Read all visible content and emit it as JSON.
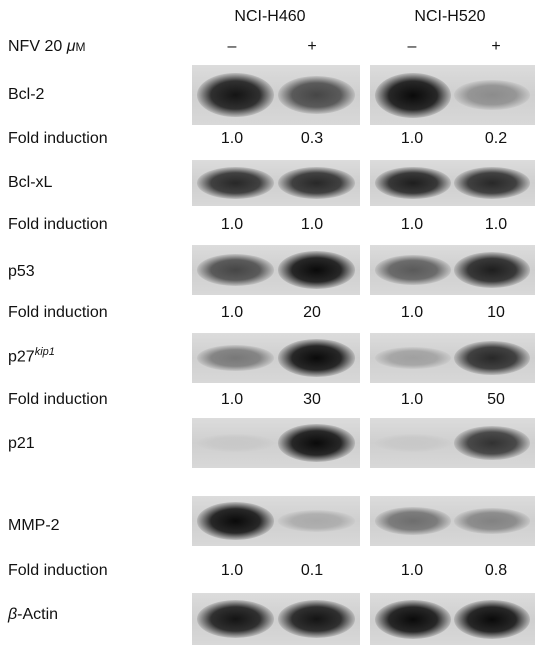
{
  "cell_lines": [
    "NCI-H460",
    "NCI-H520"
  ],
  "treatment": {
    "drug": "NFV  20",
    "unit_mu": "μ",
    "unit_m": "M"
  },
  "lane_signs": [
    "–",
    "+",
    "–",
    "+"
  ],
  "rows": {
    "bcl2": {
      "label": "Bcl-2",
      "fold_label": "Fold induction",
      "fold": [
        "1.0",
        "0.3",
        "1.0",
        "0.2"
      ]
    },
    "bclxl": {
      "label": "Bcl-xL",
      "fold_label": "Fold induction",
      "fold": [
        "1.0",
        "1.0",
        "1.0",
        "1.0"
      ]
    },
    "p53": {
      "label": "p53",
      "fold_label": "Fold induction",
      "fold": [
        "1.0",
        "20",
        "1.0",
        "10"
      ]
    },
    "p27": {
      "label": "p27",
      "label_sup": "kip1",
      "fold_label": "Fold induction",
      "fold": [
        "1.0",
        "30",
        "1.0",
        "50"
      ]
    },
    "p21": {
      "label": "p21"
    },
    "mmp2": {
      "label": "MMP-2",
      "fold_label": "Fold induction",
      "fold": [
        "1.0",
        "0.1",
        "1.0",
        "0.8"
      ]
    },
    "actin": {
      "label_greek": "β",
      "label": "-Actin"
    }
  },
  "band_intensity": {
    "bcl2": [
      0.95,
      0.7,
      1.0,
      0.35
    ],
    "bclxl": [
      0.85,
      0.85,
      0.9,
      0.85
    ],
    "p53": [
      0.7,
      1.0,
      0.6,
      0.9
    ],
    "p27": [
      0.45,
      1.0,
      0.25,
      0.85
    ],
    "p21": [
      0.05,
      1.0,
      0.05,
      0.8
    ],
    "mmp2": [
      1.0,
      0.2,
      0.5,
      0.4
    ],
    "actin": [
      0.95,
      0.95,
      1.0,
      1.0
    ]
  }
}
